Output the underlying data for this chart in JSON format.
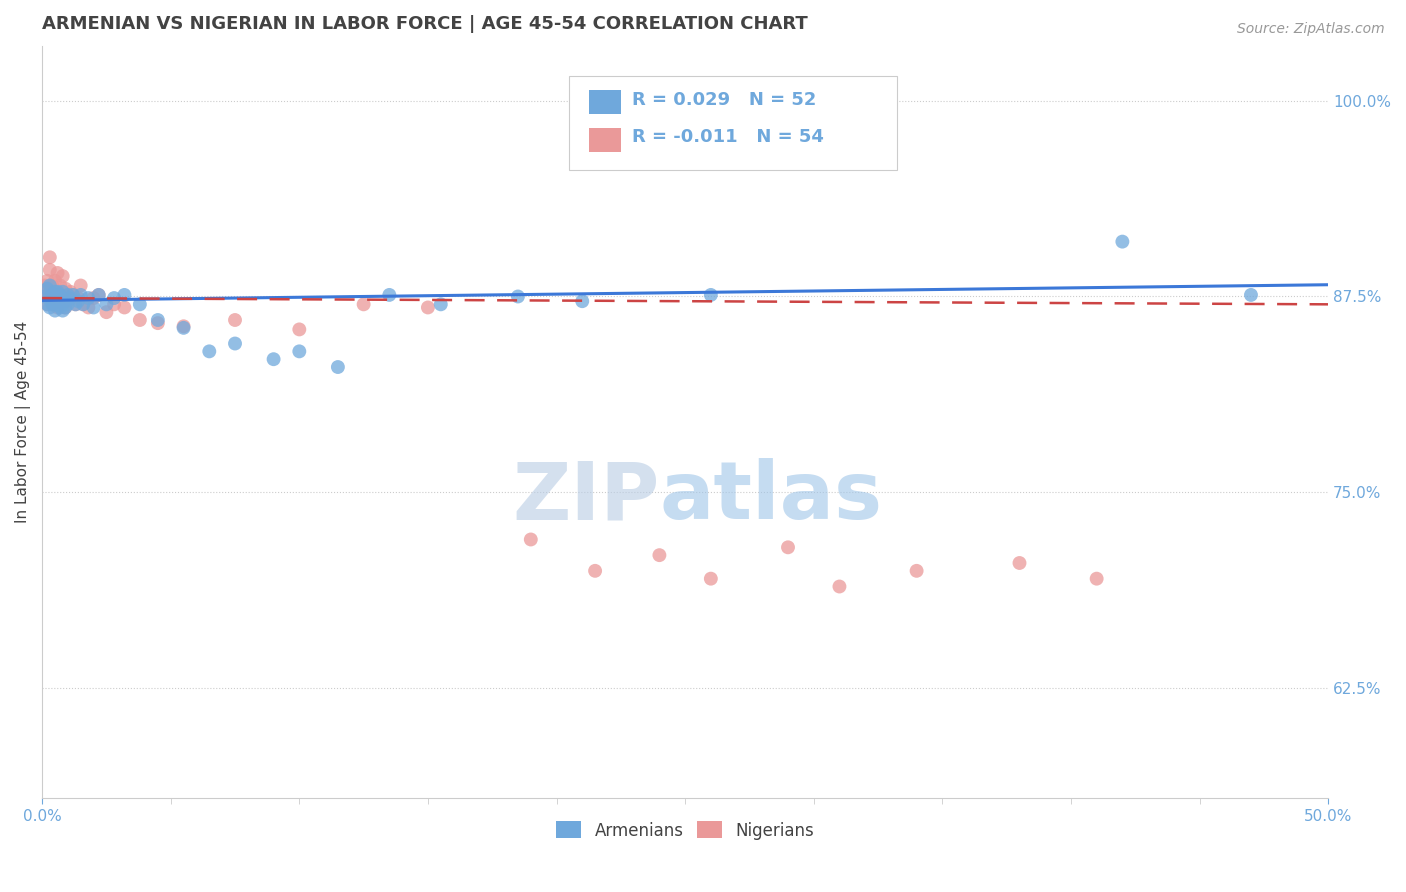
{
  "title": "ARMENIAN VS NIGERIAN IN LABOR FORCE | AGE 45-54 CORRELATION CHART",
  "source_text": "Source: ZipAtlas.com",
  "ylabel": "In Labor Force | Age 45-54",
  "xlim": [
    0.0,
    0.5
  ],
  "ylim": [
    0.555,
    1.035
  ],
  "xticks": [
    0.0,
    0.5
  ],
  "xtick_labels_pos": [
    0.0,
    0.5
  ],
  "xtick_labels": [
    "0.0%",
    "50.0%"
  ],
  "yticks_right": [
    0.625,
    0.75,
    0.875,
    1.0
  ],
  "ytick_labels_right": [
    "62.5%",
    "75.0%",
    "87.5%",
    "100.0%"
  ],
  "legend_r1": "R = 0.029",
  "legend_n1": "N = 52",
  "legend_r2": "R = -0.011",
  "legend_n2": "N = 54",
  "blue_color": "#6fa8dc",
  "pink_color": "#ea9999",
  "trend_blue": "#3c78d8",
  "trend_pink": "#cc4444",
  "title_color": "#434343",
  "source_color": "#999999",
  "axis_label_color": "#434343",
  "tick_label_color": "#6fa8dc",
  "grid_color": "#cccccc",
  "background_color": "#ffffff",
  "watermark_text": "ZIP",
  "watermark_text2": "atlas",
  "watermark_color_zip": "#b8cce4",
  "watermark_color_atlas": "#9fc5e8",
  "armenians_x": [
    0.001,
    0.002,
    0.002,
    0.003,
    0.003,
    0.003,
    0.004,
    0.004,
    0.004,
    0.005,
    0.005,
    0.005,
    0.006,
    0.006,
    0.006,
    0.007,
    0.007,
    0.007,
    0.008,
    0.008,
    0.008,
    0.009,
    0.009,
    0.01,
    0.01,
    0.011,
    0.012,
    0.013,
    0.014,
    0.015,
    0.016,
    0.018,
    0.02,
    0.022,
    0.025,
    0.028,
    0.032,
    0.038,
    0.045,
    0.055,
    0.065,
    0.075,
    0.09,
    0.1,
    0.115,
    0.135,
    0.155,
    0.185,
    0.21,
    0.26,
    0.42,
    0.47
  ],
  "armenians_y": [
    0.875,
    0.88,
    0.87,
    0.875,
    0.868,
    0.882,
    0.874,
    0.876,
    0.87,
    0.878,
    0.872,
    0.866,
    0.876,
    0.87,
    0.878,
    0.874,
    0.868,
    0.876,
    0.872,
    0.866,
    0.878,
    0.872,
    0.868,
    0.876,
    0.87,
    0.874,
    0.876,
    0.87,
    0.872,
    0.876,
    0.87,
    0.874,
    0.868,
    0.876,
    0.87,
    0.874,
    0.876,
    0.87,
    0.86,
    0.855,
    0.84,
    0.845,
    0.835,
    0.84,
    0.83,
    0.876,
    0.87,
    0.875,
    0.872,
    0.876,
    0.91,
    0.876
  ],
  "nigerians_x": [
    0.001,
    0.001,
    0.002,
    0.002,
    0.002,
    0.003,
    0.003,
    0.003,
    0.004,
    0.004,
    0.004,
    0.005,
    0.005,
    0.005,
    0.006,
    0.006,
    0.006,
    0.007,
    0.007,
    0.008,
    0.008,
    0.008,
    0.009,
    0.009,
    0.01,
    0.01,
    0.011,
    0.012,
    0.013,
    0.014,
    0.015,
    0.016,
    0.018,
    0.02,
    0.022,
    0.025,
    0.028,
    0.032,
    0.038,
    0.045,
    0.055,
    0.075,
    0.1,
    0.125,
    0.15,
    0.19,
    0.215,
    0.24,
    0.26,
    0.29,
    0.31,
    0.34,
    0.38,
    0.41
  ],
  "nigerians_y": [
    0.876,
    0.882,
    0.878,
    0.885,
    0.87,
    0.892,
    0.876,
    0.9,
    0.882,
    0.87,
    0.878,
    0.885,
    0.874,
    0.872,
    0.89,
    0.876,
    0.868,
    0.882,
    0.876,
    0.888,
    0.872,
    0.878,
    0.868,
    0.88,
    0.876,
    0.872,
    0.878,
    0.876,
    0.87,
    0.874,
    0.882,
    0.87,
    0.868,
    0.874,
    0.876,
    0.865,
    0.87,
    0.868,
    0.86,
    0.858,
    0.856,
    0.86,
    0.854,
    0.87,
    0.868,
    0.72,
    0.7,
    0.71,
    0.695,
    0.715,
    0.69,
    0.7,
    0.705,
    0.695
  ],
  "arm_trend_slope": 0.02,
  "arm_trend_intercept": 0.8725,
  "nig_trend_slope": -0.008,
  "nig_trend_intercept": 0.874
}
